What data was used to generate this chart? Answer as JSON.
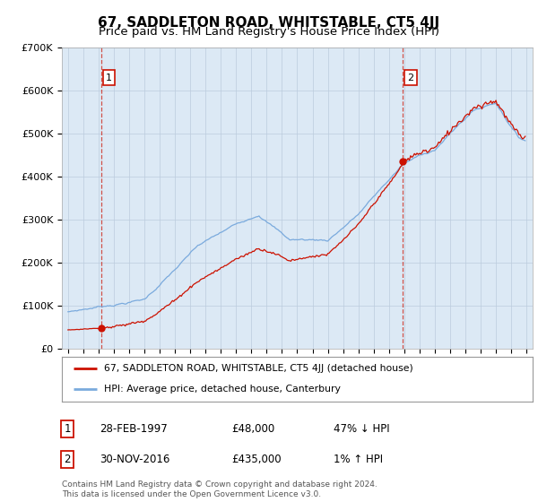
{
  "title": "67, SADDLETON ROAD, WHITSTABLE, CT5 4JJ",
  "subtitle": "Price paid vs. HM Land Registry's House Price Index (HPI)",
  "ylim": [
    0,
    700000
  ],
  "yticks": [
    0,
    100000,
    200000,
    300000,
    400000,
    500000,
    600000,
    700000
  ],
  "ytick_labels": [
    "£0",
    "£100K",
    "£200K",
    "£300K",
    "£400K",
    "£500K",
    "£600K",
    "£700K"
  ],
  "plot_bg_color": "#dce9f5",
  "hpi_color": "#7aaadd",
  "price_color": "#cc1100",
  "sale1_date": 1997.167,
  "sale1_price": 48000,
  "sale2_date": 2016.917,
  "sale2_price": 435000,
  "legend_line1": "67, SADDLETON ROAD, WHITSTABLE, CT5 4JJ (detached house)",
  "legend_line2": "HPI: Average price, detached house, Canterbury",
  "note1_date": "28-FEB-1997",
  "note1_price": "£48,000",
  "note1_hpi": "47% ↓ HPI",
  "note2_date": "30-NOV-2016",
  "note2_price": "£435,000",
  "note2_hpi": "1% ↑ HPI",
  "footer": "Contains HM Land Registry data © Crown copyright and database right 2024.\nThis data is licensed under the Open Government Licence v3.0.",
  "title_fontsize": 11,
  "subtitle_fontsize": 9.5,
  "grid_color": "#bbccdd"
}
